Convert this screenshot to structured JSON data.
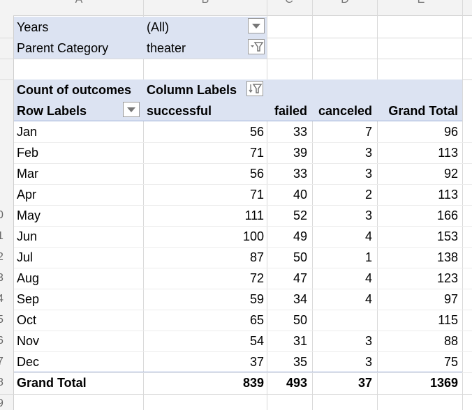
{
  "columns": [
    "A",
    "B",
    "C",
    "D",
    "E"
  ],
  "row_numbers": [
    "",
    "",
    "",
    "",
    "0",
    "1",
    "2",
    "3",
    "4",
    "5",
    "6",
    "7",
    "8",
    "9"
  ],
  "filters": [
    {
      "label": "Years",
      "value": "(All)",
      "icon": "dropdown-arrow-icon"
    },
    {
      "label": "Parent Category",
      "value": "theater",
      "icon": "filter-funnel-icon"
    }
  ],
  "pivot": {
    "value_field": "Count of outcomes",
    "column_labels": "Column Labels",
    "row_labels": "Row Labels",
    "headers": [
      "successful",
      "failed",
      "canceled",
      "Grand Total"
    ],
    "rows": [
      {
        "label": "Jan",
        "successful": "56",
        "failed": "33",
        "canceled": "7",
        "total": "96"
      },
      {
        "label": "Feb",
        "successful": "71",
        "failed": "39",
        "canceled": "3",
        "total": "113"
      },
      {
        "label": "Mar",
        "successful": "56",
        "failed": "33",
        "canceled": "3",
        "total": "92"
      },
      {
        "label": "Apr",
        "successful": "71",
        "failed": "40",
        "canceled": "2",
        "total": "113"
      },
      {
        "label": "May",
        "successful": "111",
        "failed": "52",
        "canceled": "3",
        "total": "166"
      },
      {
        "label": "Jun",
        "successful": "100",
        "failed": "49",
        "canceled": "4",
        "total": "153"
      },
      {
        "label": "Jul",
        "successful": "87",
        "failed": "50",
        "canceled": "1",
        "total": "138"
      },
      {
        "label": "Aug",
        "successful": "72",
        "failed": "47",
        "canceled": "4",
        "total": "123"
      },
      {
        "label": "Sep",
        "successful": "59",
        "failed": "34",
        "canceled": "4",
        "total": "97"
      },
      {
        "label": "Oct",
        "successful": "65",
        "failed": "50",
        "canceled": "",
        "total": "115"
      },
      {
        "label": "Nov",
        "successful": "54",
        "failed": "31",
        "canceled": "3",
        "total": "88"
      },
      {
        "label": "Dec",
        "successful": "37",
        "failed": "35",
        "canceled": "3",
        "total": "75"
      }
    ],
    "grand_total": {
      "label": "Grand Total",
      "successful": "839",
      "failed": "493",
      "canceled": "37",
      "total": "1369"
    }
  },
  "colors": {
    "pivot_fill": "#dce3f2",
    "pivot_rule": "#9cb0d8",
    "grid": "#d9d9d9"
  }
}
